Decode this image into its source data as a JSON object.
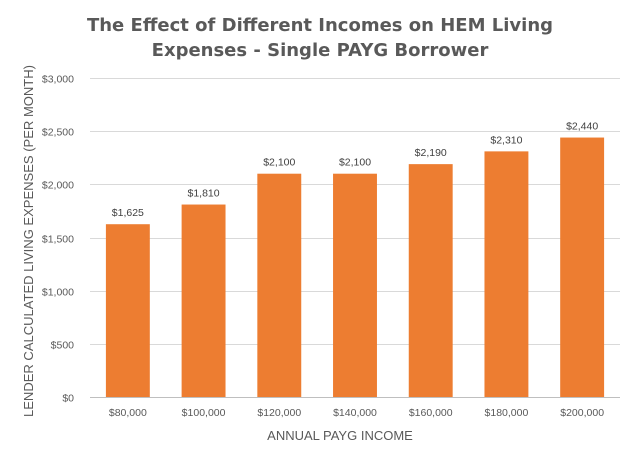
{
  "chart_data": {
    "type": "bar",
    "title_lines": [
      "The Effect of Different Incomes on HEM Living",
      "Expenses - Single PAYG Borrower"
    ],
    "xlabel": "ANNUAL PAYG INCOME",
    "ylabel": "LENDER CALCULATED LIVING EXPENSES (PER MONTH)",
    "categories": [
      "$80,000",
      "$100,000",
      "$120,000",
      "$140,000",
      "$160,000",
      "$180,000",
      "$200,000"
    ],
    "values": [
      1625,
      1810,
      2100,
      2100,
      2190,
      2310,
      2440
    ],
    "data_labels": [
      "$1,625",
      "$1,810",
      "$2,100",
      "$2,100",
      "$2,190",
      "$2,310",
      "$2,440"
    ],
    "ylim": [
      0,
      3000
    ],
    "y_ticks": [
      0,
      500,
      1000,
      1500,
      2000,
      2500,
      3000
    ],
    "y_tick_labels": [
      "$0",
      "$500",
      "$1,000",
      "$1,500",
      "$2,000",
      "$2,500",
      "$3,000"
    ],
    "grid": true,
    "legend": "none",
    "bar_color": "#ED7D31"
  }
}
